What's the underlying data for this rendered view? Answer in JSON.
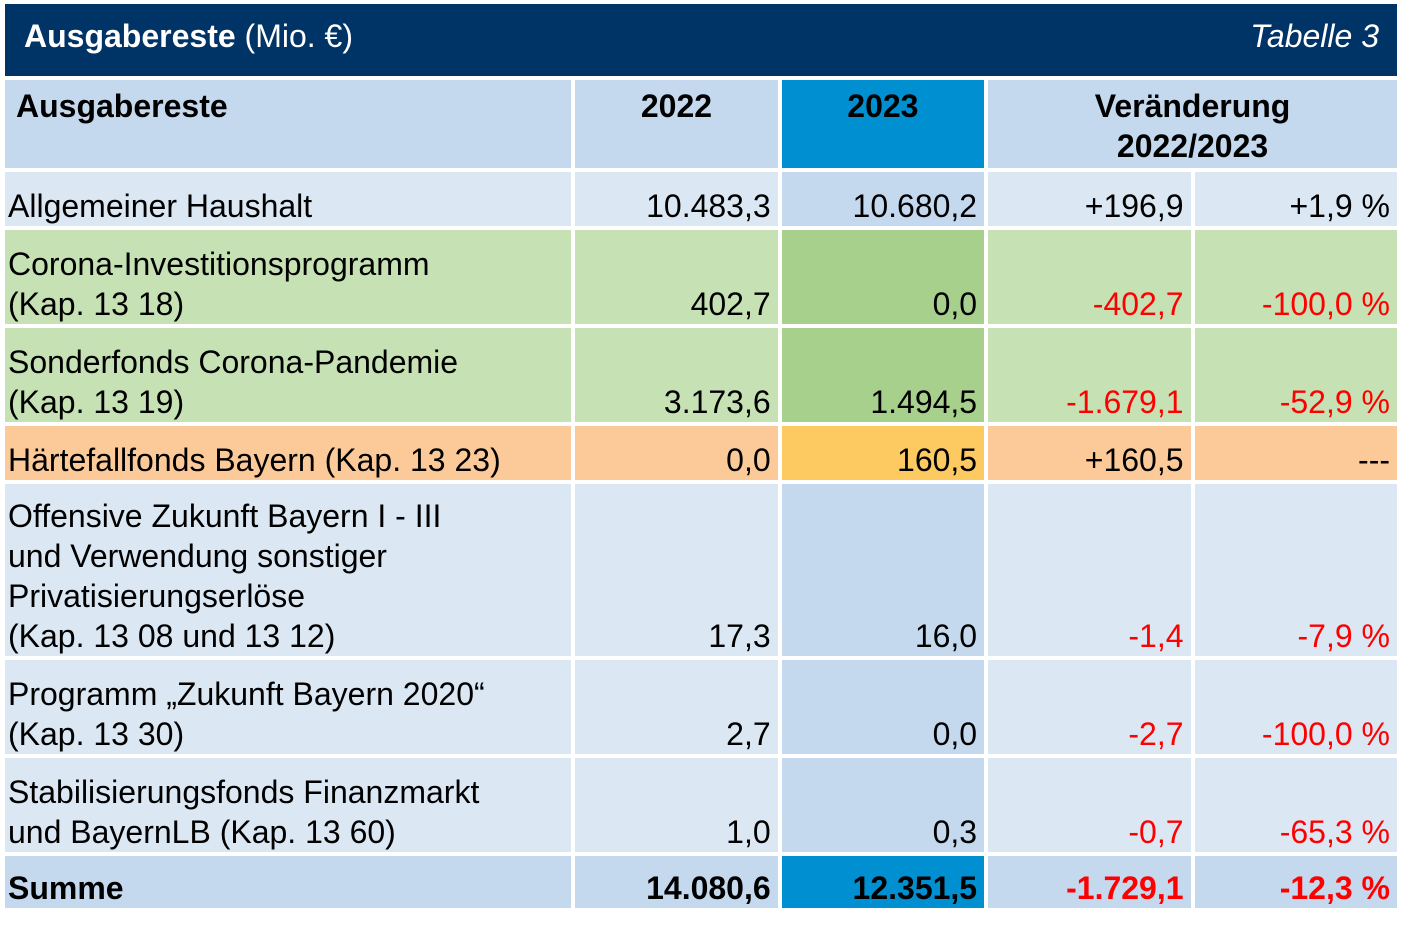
{
  "title": {
    "main": "Ausgabereste",
    "unit": "(Mio. €)",
    "table_number": "Tabelle 3"
  },
  "header": {
    "label": "Ausgabereste",
    "year1": "2022",
    "year2": "2023",
    "change_line1": "Veränderung",
    "change_line2": "2022/2023"
  },
  "rows": [
    {
      "label_lines": [
        "Allgemeiner Haushalt"
      ],
      "v2022": "10.483,3",
      "v2023": "10.680,2",
      "abs": "+196,9",
      "pct": "+1,9 %",
      "negative": false,
      "style": "blue"
    },
    {
      "label_lines": [
        "Corona-Investitionsprogramm",
        "(Kap. 13 18)"
      ],
      "v2022": "402,7",
      "v2023": "0,0",
      "abs": "-402,7",
      "pct": "-100,0 %",
      "negative": true,
      "style": "green"
    },
    {
      "label_lines": [
        "Sonderfonds Corona-Pandemie",
        "(Kap. 13 19)"
      ],
      "v2022": "3.173,6",
      "v2023": "1.494,5",
      "abs": "-1.679,1",
      "pct": "-52,9 %",
      "negative": true,
      "style": "green"
    },
    {
      "label_lines": [
        "Härtefallfonds Bayern (Kap. 13 23)"
      ],
      "v2022": "0,0",
      "v2023": "160,5",
      "abs": "+160,5",
      "pct": "---",
      "negative": false,
      "style": "orange"
    },
    {
      "label_lines": [
        "Offensive Zukunft Bayern I - III",
        "und Verwendung sonstiger",
        "Privatisierungserlöse",
        "(Kap. 13 08 und 13 12)"
      ],
      "v2022": "17,3",
      "v2023": "16,0",
      "abs": "-1,4",
      "pct": "-7,9 %",
      "negative": true,
      "style": "blue"
    },
    {
      "label_lines": [
        "Programm „Zukunft Bayern 2020“",
        "(Kap. 13 30)"
      ],
      "v2022": "2,7",
      "v2023": "0,0",
      "abs": "-2,7",
      "pct": "-100,0 %",
      "negative": true,
      "style": "blue"
    },
    {
      "label_lines": [
        "Stabilisierungsfonds Finanzmarkt",
        "und BayernLB (Kap. 13 60)"
      ],
      "v2022": "1,0",
      "v2023": "0,3",
      "abs": "-0,7",
      "pct": "-65,3 %",
      "negative": true,
      "style": "blue"
    }
  ],
  "total": {
    "label": "Summe",
    "v2022": "14.080,6",
    "v2023": "12.351,5",
    "abs": "-1.729,1",
    "pct": "-12,3 %",
    "negative": true
  },
  "colors": {
    "title_bar": "#003366",
    "header_bg": "#c5d9ee",
    "highlight_2023": "#008fd1",
    "row_blue": "#dbe7f3",
    "row_green": "#c6e1b4",
    "row_green_2023": "#a8d08d",
    "row_orange": "#fcca98",
    "row_orange_2023": "#fcca60",
    "negative_text": "#ff0000"
  }
}
